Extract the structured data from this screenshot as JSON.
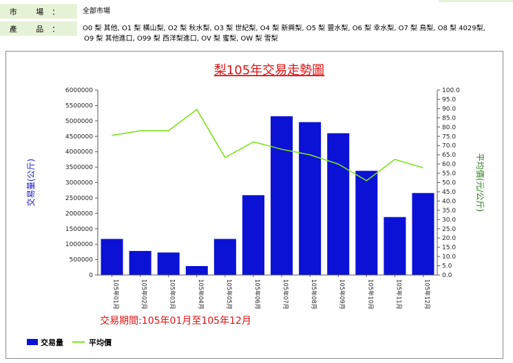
{
  "filters": {
    "market_label": "市 場：",
    "market_value": "全部市場",
    "product_label": "產 品：",
    "product_line1": "O0 梨 其他, O1 梨 橫山梨, O2 梨 秋水梨, O3 梨 世紀梨, O4 梨 新興梨, O5 梨 豐水梨, O6 梨 幸水梨, O7 梨 鳥梨, O8 梨 4029梨,",
    "product_line2": "O9 梨 其他進口, O99 梨 西洋梨進口, OV 梨 蜜梨, OW 梨 雪梨"
  },
  "colors": {
    "bar": "#0b12d6",
    "line": "#7de21a",
    "title": "#e01010",
    "left_axis_label": "#1a1ad0",
    "right_axis_label": "#2a7a1a",
    "period_text": "#e01010",
    "filter_label_bg": "#e6f2d6"
  },
  "chart_data": {
    "type": "bar",
    "title": "梨105年交易走勢圖",
    "xlabel": "交易期間:105年01月至105年12月",
    "ylabel": "交易量(公斤)",
    "y2label": "平均價(元/公斤)",
    "categories": [
      "105年01月",
      "105年02月",
      "105年03月",
      "105年04月",
      "105年05月",
      "105年06月",
      "105年07月",
      "105年08月",
      "105年09月",
      "105年10月",
      "105年11月",
      "105年12月"
    ],
    "ylim": [
      0,
      6000000
    ],
    "y2lim": [
      0,
      100
    ],
    "yticks": [
      "0",
      "500000",
      "1000000",
      "1500000",
      "2000000",
      "2500000",
      "3000000",
      "3500000",
      "4000000",
      "4500000",
      "5000000",
      "5500000",
      "6000000"
    ],
    "y2ticks": [
      "0.0",
      "5.0",
      "10.0",
      "15.0",
      "20.0",
      "25.0",
      "30.0",
      "35.0",
      "40.0",
      "45.0",
      "50.0",
      "55.0",
      "60.0",
      "65.0",
      "70.0",
      "75.0",
      "80.0",
      "85.0",
      "90.0",
      "95.0",
      "100.0"
    ],
    "series": [
      {
        "name": "交易量",
        "type": "bar",
        "axis": "left",
        "values": [
          1170000,
          780000,
          730000,
          290000,
          1170000,
          2590000,
          5150000,
          4960000,
          4600000,
          3380000,
          1880000,
          2660000
        ]
      },
      {
        "name": "平均價",
        "type": "line",
        "axis": "right",
        "values": [
          75.5,
          78.0,
          78.0,
          89.5,
          63.5,
          72.0,
          68.0,
          65.0,
          60.0,
          51.0,
          62.5,
          58.0
        ]
      }
    ],
    "legend_position": "bottom-left",
    "grid": false
  }
}
